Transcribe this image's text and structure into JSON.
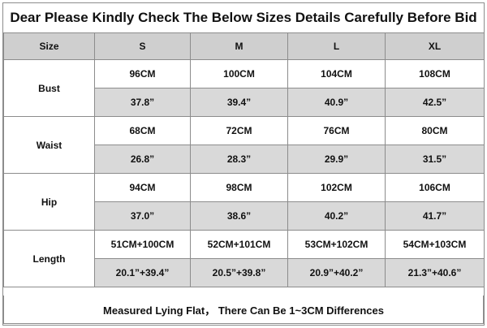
{
  "title": "Dear Please Kindly Check The Below Sizes Details Carefully Before Bid",
  "table": {
    "header": [
      "Size",
      "S",
      "M",
      "L",
      "XL"
    ],
    "rows": [
      {
        "label": "Bust",
        "cm": [
          "96CM",
          "100CM",
          "104CM",
          "108CM"
        ],
        "inch": [
          "37.8”",
          "39.4”",
          "40.9”",
          "42.5”"
        ]
      },
      {
        "label": "Waist",
        "cm": [
          "68CM",
          "72CM",
          "76CM",
          "80CM"
        ],
        "inch": [
          "26.8”",
          "28.3”",
          "29.9”",
          "31.5”"
        ]
      },
      {
        "label": "Hip",
        "cm": [
          "94CM",
          "98CM",
          "102CM",
          "106CM"
        ],
        "inch": [
          "37.0”",
          "38.6”",
          "40.2”",
          "41.7”"
        ]
      },
      {
        "label": "Length",
        "cm": [
          "51CM+100CM",
          "52CM+101CM",
          "53CM+102CM",
          "54CM+103CM"
        ],
        "inch": [
          "20.1”+39.4”",
          "20.5”+39.8”",
          "20.9”+40.2”",
          "21.3”+40.6”"
        ]
      }
    ]
  },
  "footer": "Measured Lying Flat， There Can Be 1~3CM Differences",
  "colors": {
    "header_bg": "#cfcfcf",
    "inch_row_bg": "#d9d9d9",
    "border": "#8c8c8c"
  }
}
